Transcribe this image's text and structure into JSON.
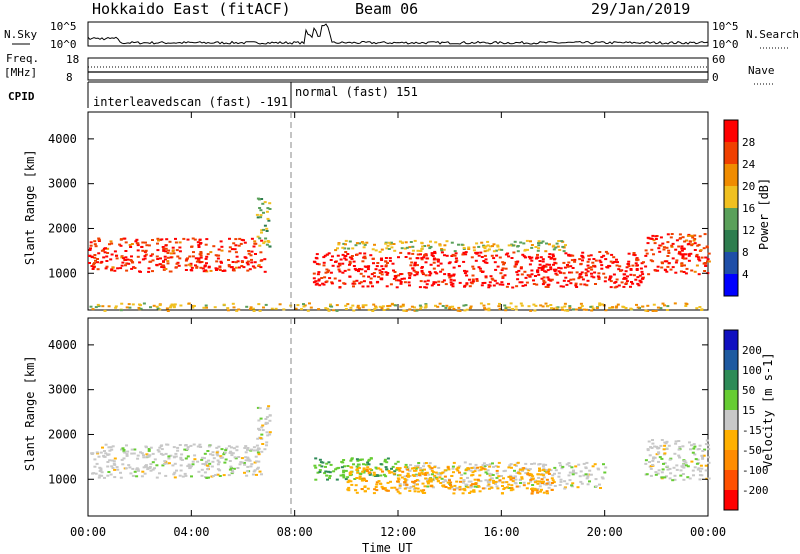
{
  "header": {
    "station": "Hokkaido East (fitACF)",
    "beam": "Beam 06",
    "date": "29/Jan/2019"
  },
  "strips": {
    "nsky": {
      "label": "N.Sky",
      "left_top": "10^5",
      "left_bottom": "10^0",
      "right_top": "10^5",
      "right_bottom": "10^0",
      "right_label": "N.Search"
    },
    "freq": {
      "label_line1": "Freq.",
      "label_line2": "[MHz]",
      "left_top": "18",
      "left_bottom": "8",
      "right_top": "60",
      "right_bottom": "0",
      "right_label": "Nave"
    },
    "cpid": {
      "label": "CPID",
      "segment1": "interleavedscan (fast) -191",
      "segment2": "normal (fast) 151"
    }
  },
  "panels": {
    "power": {
      "ylabel": "Slant Range [km]",
      "cbar_label": "Power [dB]",
      "cbar_ticks": [
        "4",
        "8",
        "12",
        "16",
        "20",
        "24",
        "28"
      ]
    },
    "velocity": {
      "ylabel": "Slant Range [km]",
      "cbar_label": "Velocity [m s-1]",
      "cbar_ticks": [
        "-200",
        "-100",
        "-50",
        "-15",
        "15",
        "50",
        "100",
        "200"
      ]
    }
  },
  "xaxis": {
    "label": "Time UT",
    "ticks": [
      "00:00",
      "04:00",
      "08:00",
      "12:00",
      "16:00",
      "20:00",
      "00:00"
    ]
  },
  "colors": {
    "power_scale": [
      "#0000ff",
      "#1f4fa8",
      "#2e7d4f",
      "#5aa05a",
      "#f0c020",
      "#f08c00",
      "#f04000",
      "#ff0000"
    ],
    "velocity_scale": [
      "#ff0000",
      "#ff5000",
      "#ff8c00",
      "#ffb000",
      "#c8c8c8",
      "#66cc33",
      "#2e8b57",
      "#1e5aa0",
      "#1010c0"
    ]
  },
  "chart_data": [
    {
      "type": "heatmap",
      "title": "Power",
      "xlabel": "Time UT",
      "ylabel": "Slant Range [km]",
      "xlim": [
        "00:00",
        "24:00"
      ],
      "ylim": [
        180,
        4600
      ],
      "yticks": [
        1000,
        2000,
        3000,
        4000
      ],
      "colorbar": {
        "label": "Power [dB]",
        "range": [
          0,
          30
        ]
      },
      "echo_regions": [
        {
          "t_start": 0.0,
          "t_end": 6.8,
          "range_low_km": 1050,
          "range_high_km": 1800,
          "power_db": 26
        },
        {
          "t_start": 6.5,
          "t_end": 7.0,
          "range_low_km": 1600,
          "range_high_km": 2700,
          "power_db": 14
        },
        {
          "t_start": 8.7,
          "t_end": 21.5,
          "range_low_km": 700,
          "range_high_km": 1500,
          "power_db": 28
        },
        {
          "t_start": 9.5,
          "t_end": 18.5,
          "range_low_km": 1500,
          "range_high_km": 1750,
          "power_db": 16
        },
        {
          "t_start": 21.5,
          "t_end": 24.0,
          "range_low_km": 1000,
          "range_high_km": 1900,
          "power_db": 26
        },
        {
          "t_start": 0.0,
          "t_end": 24.0,
          "range_low_km": 180,
          "range_high_km": 350,
          "power_db": 18
        }
      ]
    },
    {
      "type": "heatmap",
      "title": "Velocity",
      "xlabel": "Time UT",
      "ylabel": "Slant Range [km]",
      "xlim": [
        "00:00",
        "24:00"
      ],
      "ylim": [
        180,
        4600
      ],
      "yticks": [
        1000,
        2000,
        3000,
        4000
      ],
      "colorbar": {
        "label": "Velocity [m s-1]",
        "range": [
          -250,
          250
        ]
      },
      "echo_regions": [
        {
          "t_start": 0.0,
          "t_end": 6.8,
          "range_low_km": 1050,
          "range_high_km": 1800,
          "velocity": 0
        },
        {
          "t_start": 6.5,
          "t_end": 7.0,
          "range_low_km": 1600,
          "range_high_km": 2700,
          "velocity": 0
        },
        {
          "t_start": 8.7,
          "t_end": 12.0,
          "range_low_km": 1000,
          "range_high_km": 1500,
          "velocity": 40
        },
        {
          "t_start": 12.0,
          "t_end": 20.0,
          "range_low_km": 800,
          "range_high_km": 1400,
          "velocity": 0
        },
        {
          "t_start": 10.0,
          "t_end": 18.0,
          "range_low_km": 700,
          "range_high_km": 1300,
          "velocity": -40
        },
        {
          "t_start": 21.5,
          "t_end": 24.0,
          "range_low_km": 1000,
          "range_high_km": 1900,
          "velocity": 0
        }
      ]
    }
  ]
}
